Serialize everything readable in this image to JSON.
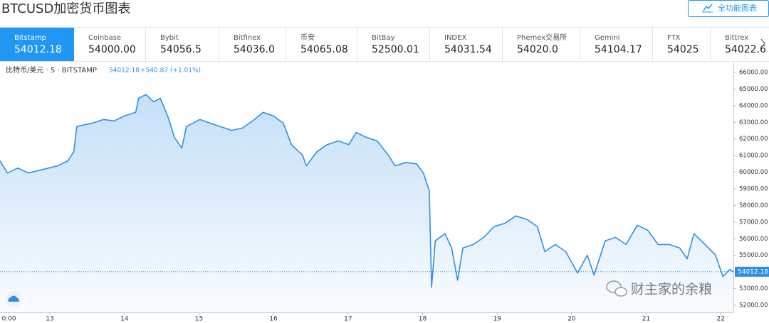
{
  "header": {
    "title": "BTCUSD加密货币图表",
    "button": "全功能图表"
  },
  "tabs": [
    {
      "name": "Bitstamp",
      "price": "54012.18"
    },
    {
      "name": "Coinbase",
      "price": "54000.00"
    },
    {
      "name": "Bybit",
      "price": "54056.5"
    },
    {
      "name": "Bitfinex",
      "price": "54036.0"
    },
    {
      "name": "币安",
      "price": "54065.08"
    },
    {
      "name": "BitBay",
      "price": "52500.01"
    },
    {
      "name": "INDEX",
      "price": "54031.54"
    },
    {
      "name": "Phemex交易所",
      "price": "54020.0"
    },
    {
      "name": "Gemini",
      "price": "54104.17"
    },
    {
      "name": "FTX",
      "price": "54025"
    },
    {
      "name": "Bittrex",
      "price": "54022.6"
    }
  ],
  "chart_data": {
    "type": "line",
    "legend": "比特币/美元 · 5 · BITSTAMP",
    "last_price": 54012.18,
    "change": "+540.87 (+1.01%)",
    "color": "#2f8fe6",
    "x": [
      12.33,
      12.43,
      12.57,
      12.71,
      12.9,
      13.1,
      13.24,
      13.32,
      13.36,
      13.43,
      13.57,
      13.72,
      13.86,
      14.0,
      14.15,
      14.19,
      14.29,
      14.39,
      14.48,
      14.58,
      14.67,
      14.77,
      14.83,
      15.01,
      15.15,
      15.29,
      15.44,
      15.58,
      15.72,
      15.86,
      16.0,
      16.13,
      16.24,
      16.39,
      16.44,
      16.58,
      16.72,
      16.87,
      17.01,
      17.11,
      17.25,
      17.39,
      17.54,
      17.63,
      17.78,
      17.92,
      18.01,
      18.09,
      18.12,
      18.17,
      18.3,
      18.39,
      18.47,
      18.54,
      18.68,
      18.82,
      18.96,
      19.11,
      19.25,
      19.4,
      19.54,
      19.64,
      19.78,
      19.92,
      20.08,
      20.21,
      20.3,
      20.45,
      20.59,
      20.73,
      20.88,
      21.02,
      21.16,
      21.31,
      21.45,
      21.55,
      21.64,
      21.79,
      21.93,
      22.03,
      22.12,
      22.17
    ],
    "values": [
      60680,
      59950,
      60250,
      59950,
      60160,
      60380,
      60680,
      61230,
      62740,
      62820,
      62950,
      63170,
      63080,
      63380,
      63600,
      64450,
      64670,
      64240,
      64450,
      63380,
      62090,
      61450,
      62740,
      63170,
      62950,
      62740,
      62520,
      62650,
      63080,
      63600,
      63380,
      62950,
      61660,
      61020,
      60380,
      61230,
      61660,
      61880,
      61660,
      62390,
      62090,
      61880,
      61020,
      60380,
      60590,
      60500,
      59950,
      58870,
      53080,
      55870,
      56300,
      55440,
      53500,
      55440,
      55650,
      56080,
      56730,
      56940,
      57370,
      57160,
      56730,
      55220,
      55650,
      55220,
      53930,
      55010,
      53810,
      55870,
      56080,
      55650,
      56810,
      56510,
      55650,
      55650,
      55440,
      54790,
      56300,
      55650,
      55010,
      53720,
      54150,
      54012.18
    ],
    "xlim": [
      12.33,
      22.17
    ],
    "ylim": [
      51570,
      66600
    ],
    "xticks": [
      {
        "value": 12.45,
        "label": "0:00"
      },
      13,
      14,
      15,
      16,
      17,
      18,
      19,
      20,
      21,
      22
    ],
    "yticks": [
      {
        "value": 52000,
        "label": "52000.00"
      },
      {
        "value": 53000,
        "label": "53000.00"
      },
      {
        "value": 54000,
        "label": "54000.00"
      },
      {
        "value": 55000,
        "label": "55000.00"
      },
      {
        "value": 56000,
        "label": "56000.00"
      },
      {
        "value": 57000,
        "label": "57000.00"
      },
      {
        "value": 58000,
        "label": "58000.00"
      },
      {
        "value": 59000,
        "label": "59000.00"
      },
      {
        "value": 60000,
        "label": "60000.00"
      },
      {
        "value": 61000,
        "label": "61000.00"
      },
      {
        "value": 62000,
        "label": "62000.00"
      },
      {
        "value": 63000,
        "label": "63000.00"
      },
      {
        "value": 64000,
        "label": "64000.00"
      },
      {
        "value": 65000,
        "label": "65000.00"
      },
      {
        "value": 66000,
        "label": "66000.00"
      }
    ],
    "watermark": "财主家的余粮"
  }
}
